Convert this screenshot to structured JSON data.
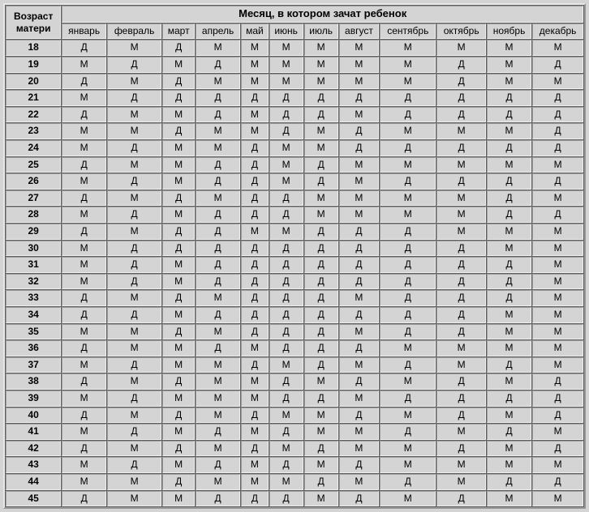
{
  "type": "table",
  "header": {
    "corner_line1": "Возраст",
    "corner_line2": "матери",
    "span_title": "Месяц, в котором зачат ребенок",
    "months": [
      "январь",
      "февраль",
      "март",
      "апрель",
      "май",
      "июнь",
      "июль",
      "август",
      "сентябрь",
      "октябрь",
      "ноябрь",
      "декабрь"
    ]
  },
  "ages": [
    "18",
    "19",
    "20",
    "21",
    "22",
    "23",
    "24",
    "25",
    "26",
    "27",
    "28",
    "29",
    "30",
    "31",
    "32",
    "33",
    "34",
    "35",
    "36",
    "37",
    "38",
    "39",
    "40",
    "41",
    "42",
    "43",
    "44",
    "45"
  ],
  "rows": [
    [
      "Д",
      "М",
      "Д",
      "М",
      "М",
      "М",
      "М",
      "М",
      "М",
      "М",
      "М",
      "М"
    ],
    [
      "М",
      "Д",
      "М",
      "Д",
      "М",
      "М",
      "М",
      "М",
      "М",
      "Д",
      "М",
      "Д"
    ],
    [
      "Д",
      "М",
      "Д",
      "М",
      "М",
      "М",
      "М",
      "М",
      "М",
      "Д",
      "М",
      "М"
    ],
    [
      "М",
      "Д",
      "Д",
      "Д",
      "Д",
      "Д",
      "Д",
      "Д",
      "Д",
      "Д",
      "Д",
      "Д"
    ],
    [
      "Д",
      "М",
      "М",
      "Д",
      "М",
      "Д",
      "Д",
      "М",
      "Д",
      "Д",
      "Д",
      "Д"
    ],
    [
      "М",
      "М",
      "Д",
      "М",
      "М",
      "Д",
      "М",
      "Д",
      "М",
      "М",
      "М",
      "Д"
    ],
    [
      "М",
      "Д",
      "М",
      "М",
      "Д",
      "М",
      "М",
      "Д",
      "Д",
      "Д",
      "Д",
      "Д"
    ],
    [
      "Д",
      "М",
      "М",
      "Д",
      "Д",
      "М",
      "Д",
      "М",
      "М",
      "М",
      "М",
      "М"
    ],
    [
      "М",
      "Д",
      "М",
      "Д",
      "Д",
      "М",
      "Д",
      "М",
      "Д",
      "Д",
      "Д",
      "Д"
    ],
    [
      "Д",
      "М",
      "Д",
      "М",
      "Д",
      "Д",
      "М",
      "М",
      "М",
      "М",
      "Д",
      "М"
    ],
    [
      "М",
      "Д",
      "М",
      "Д",
      "Д",
      "Д",
      "М",
      "М",
      "М",
      "М",
      "Д",
      "Д"
    ],
    [
      "Д",
      "М",
      "Д",
      "Д",
      "М",
      "М",
      "Д",
      "Д",
      "Д",
      "М",
      "М",
      "М"
    ],
    [
      "М",
      "Д",
      "Д",
      "Д",
      "Д",
      "Д",
      "Д",
      "Д",
      "Д",
      "Д",
      "М",
      "М"
    ],
    [
      "М",
      "Д",
      "М",
      "Д",
      "Д",
      "Д",
      "Д",
      "Д",
      "Д",
      "Д",
      "Д",
      "М"
    ],
    [
      "М",
      "Д",
      "М",
      "Д",
      "Д",
      "Д",
      "Д",
      "Д",
      "Д",
      "Д",
      "Д",
      "М"
    ],
    [
      "Д",
      "М",
      "Д",
      "М",
      "Д",
      "Д",
      "Д",
      "М",
      "Д",
      "Д",
      "Д",
      "М"
    ],
    [
      "Д",
      "Д",
      "М",
      "Д",
      "Д",
      "Д",
      "Д",
      "Д",
      "Д",
      "Д",
      "М",
      "М"
    ],
    [
      "М",
      "М",
      "Д",
      "М",
      "Д",
      "Д",
      "Д",
      "М",
      "Д",
      "Д",
      "М",
      "М"
    ],
    [
      "Д",
      "М",
      "М",
      "Д",
      "М",
      "Д",
      "Д",
      "Д",
      "М",
      "М",
      "М",
      "М"
    ],
    [
      "М",
      "Д",
      "М",
      "М",
      "Д",
      "М",
      "Д",
      "М",
      "Д",
      "М",
      "Д",
      "М"
    ],
    [
      "Д",
      "М",
      "Д",
      "М",
      "М",
      "Д",
      "М",
      "Д",
      "М",
      "Д",
      "М",
      "Д"
    ],
    [
      "М",
      "Д",
      "М",
      "М",
      "М",
      "Д",
      "Д",
      "М",
      "Д",
      "Д",
      "Д",
      "Д"
    ],
    [
      "Д",
      "М",
      "Д",
      "М",
      "Д",
      "М",
      "М",
      "Д",
      "М",
      "Д",
      "М",
      "Д"
    ],
    [
      "М",
      "Д",
      "М",
      "Д",
      "М",
      "Д",
      "М",
      "М",
      "Д",
      "М",
      "Д",
      "М"
    ],
    [
      "Д",
      "М",
      "Д",
      "М",
      "Д",
      "М",
      "Д",
      "М",
      "М",
      "Д",
      "М",
      "Д"
    ],
    [
      "М",
      "Д",
      "М",
      "Д",
      "М",
      "Д",
      "М",
      "Д",
      "М",
      "М",
      "М",
      "М"
    ],
    [
      "М",
      "М",
      "Д",
      "М",
      "М",
      "М",
      "Д",
      "М",
      "Д",
      "М",
      "Д",
      "Д"
    ],
    [
      "Д",
      "М",
      "М",
      "Д",
      "Д",
      "Д",
      "М",
      "Д",
      "М",
      "Д",
      "М",
      "М"
    ]
  ],
  "style": {
    "background_color": "#d4d4d4",
    "border_shadow": "#606060",
    "border_highlight": "#f0f0f0",
    "font_family": "Arial",
    "header_fontsize_pt": 10,
    "cell_fontsize_pt": 9,
    "text_color": "#000000"
  }
}
